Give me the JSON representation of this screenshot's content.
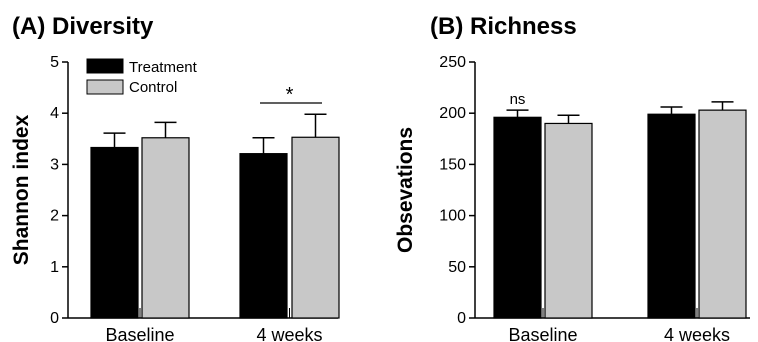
{
  "chart_data": [
    {
      "type": "bar",
      "title": "(A) Diversity",
      "xlabel": "",
      "ylabel": "Shannon index",
      "ylim": [
        0,
        5
      ],
      "yticks": [
        0,
        1,
        2,
        3,
        4,
        5
      ],
      "categories": [
        "Baseline",
        "4 weeks"
      ],
      "series": [
        {
          "name": "Treatment",
          "values": [
            3.33,
            3.21
          ],
          "errors": [
            0.28,
            0.31
          ],
          "color": "#000000"
        },
        {
          "name": "Control",
          "values": [
            3.52,
            3.53
          ],
          "errors": [
            0.3,
            0.45
          ],
          "color": "#c8c8c8"
        }
      ],
      "legend": {
        "position": "top-left",
        "entries": [
          "Treatment",
          "Control"
        ]
      },
      "annotations": [
        {
          "text": "*",
          "category": "4 weeks"
        }
      ],
      "grid": false
    },
    {
      "type": "bar",
      "title": "(B) Richness",
      "xlabel": "",
      "ylabel": "Obsevations",
      "ylim": [
        0,
        250
      ],
      "yticks": [
        0,
        50,
        100,
        150,
        200,
        250
      ],
      "categories": [
        "Baseline",
        "4 weeks"
      ],
      "series": [
        {
          "name": "Treatment",
          "values": [
            196,
            199
          ],
          "errors": [
            7,
            7
          ],
          "color": "#000000"
        },
        {
          "name": "Control",
          "values": [
            190,
            203
          ],
          "errors": [
            8,
            8
          ],
          "color": "#c8c8c8"
        }
      ],
      "annotations": [
        {
          "text": "ns",
          "category": "Baseline"
        }
      ],
      "grid": false
    }
  ]
}
